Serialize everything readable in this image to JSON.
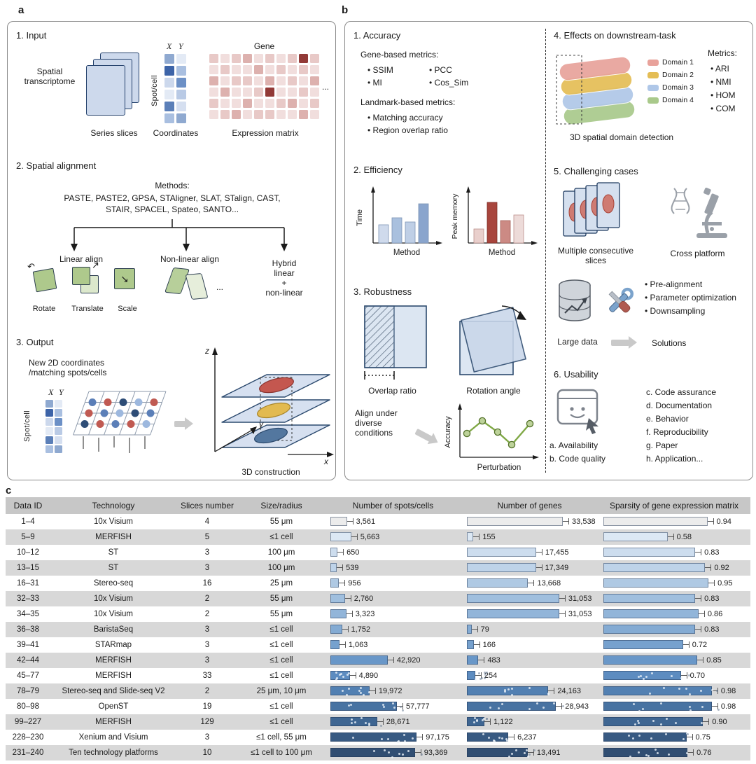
{
  "panel_a": {
    "label": "a",
    "input": {
      "title": "1. Input",
      "spatial_transcriptome": "Spatial transcriptome",
      "series_slices": "Series slices",
      "x": "X",
      "y": "Y",
      "spot_cell": "Spot/cell",
      "coordinates": "Coordinates",
      "gene": "Gene",
      "expression_matrix": "Expression matrix",
      "ellipsis": "..."
    },
    "alignment": {
      "title": "2. Spatial alignment",
      "methods_label": "Methods:",
      "methods_line1": "PASTE, PASTE2, GPSA, STAligner, SLAT, STalign, CAST,",
      "methods_line2": "STAIR, SPACEL, Spateo, SANTO...",
      "linear": "Linear align",
      "rotate": "Rotate",
      "translate": "Translate",
      "scale": "Scale",
      "nonlinear": "Non-linear align",
      "ellipsis": "...",
      "hybrid": "Hybrid\nlinear\n+\nnon-linear",
      "icons": {
        "rotate_arrow": "↶",
        "translate_arrow": "↗",
        "scale_arrow": "↘"
      }
    },
    "output": {
      "title": "3. Output",
      "new_coordinates": "New 2D coordinates\n/matching spots/cells",
      "x": "X",
      "y": "Y",
      "spot_cell": "Spot/cell",
      "axis_x": "x",
      "axis_y": "y",
      "axis_z": "z",
      "construction": "3D construction"
    }
  },
  "panel_b": {
    "label": "b",
    "accuracy": {
      "title": "1. Accuracy",
      "gene_metrics_label": "Gene-based metrics:",
      "gene_metrics": [
        "SSIM",
        "MI",
        "PCC",
        "Cos_Sim"
      ],
      "landmark_metrics_label": "Landmark-based metrics:",
      "landmark_metrics": [
        "Matching accuracy",
        "Region overlap ratio"
      ]
    },
    "efficiency": {
      "title": "2. Efficiency",
      "time_ylabel": "Time",
      "memory_ylabel": "Peak memory",
      "xlabel": "Method"
    },
    "robustness": {
      "title": "3. Robustness",
      "overlap_caption": "Overlap ratio",
      "rotation_caption": "Rotation angle",
      "align_text": "Align under\ndiverse\nconditions",
      "ylabel": "Accuracy",
      "xlabel": "Perturbation"
    },
    "downstream": {
      "title": "4. Effects on downstream-task",
      "metrics_label": "Metrics:",
      "metrics": [
        "ARI",
        "NMI",
        "HOM",
        "COM"
      ],
      "domains": [
        {
          "label": "Domain 1",
          "color": "#e8a29b"
        },
        {
          "label": "Domain 2",
          "color": "#e4bd55"
        },
        {
          "label": "Domain 3",
          "color": "#afc7e8"
        },
        {
          "label": "Domain 4",
          "color": "#a9c98b"
        }
      ],
      "caption": "3D spatial domain detection"
    },
    "challenging": {
      "title": "5. Challenging cases",
      "multiple_slices": "Multiple consecutive slices",
      "cross_platform": "Cross platform",
      "large_data": "Large data",
      "bullets": [
        "Pre-alignment",
        "Parameter optimization",
        "Downsampling"
      ],
      "solutions": "Solutions"
    },
    "usability": {
      "title": "6. Usability",
      "items_left": [
        "a. Availability",
        "b. Code quality"
      ],
      "items_right": [
        "c. Code assurance",
        "d. Documentation",
        "e. Behavior",
        "f. Reproducibility",
        "g. Paper",
        "h. Application..."
      ]
    }
  },
  "panel_c": {
    "label": "c",
    "chart_data": {
      "type": "table",
      "columns": [
        "Data ID",
        "Technology",
        "Slices number",
        "Size/radius",
        "Number of spots/cells",
        "Number of genes",
        "Sparsity of gene expression matrix"
      ],
      "bar_colors": [
        "#ececec",
        "#dce8f4",
        "#cdddee",
        "#bed3e9",
        "#afc9e3",
        "#a0bfde",
        "#92b5d9",
        "#84abd3",
        "#76a1ce",
        "#6997c8",
        "#5d8cc0",
        "#5280b2",
        "#4873a2",
        "#3f6692",
        "#385a82",
        "#314e72"
      ],
      "rows": [
        {
          "data_id": "1–4",
          "technology": "10x Visium",
          "slices": "4",
          "size": "55 μm",
          "spots": 3561,
          "spots_label": "3,561",
          "genes": 33538,
          "genes_label": "33,538",
          "sparsity": 0.94,
          "sparsity_label": "0.94"
        },
        {
          "data_id": "5–9",
          "technology": "MERFISH",
          "slices": "5",
          "size": "≤1 cell",
          "spots": 5663,
          "spots_label": "5,663",
          "genes": 155,
          "genes_label": "155",
          "sparsity": 0.58,
          "sparsity_label": "0.58"
        },
        {
          "data_id": "10–12",
          "technology": "ST",
          "slices": "3",
          "size": "100 μm",
          "spots": 650,
          "spots_label": "650",
          "genes": 17455,
          "genes_label": "17,455",
          "sparsity": 0.83,
          "sparsity_label": "0.83"
        },
        {
          "data_id": "13–15",
          "technology": "ST",
          "slices": "3",
          "size": "100 μm",
          "spots": 539,
          "spots_label": "539",
          "genes": 17349,
          "genes_label": "17,349",
          "sparsity": 0.92,
          "sparsity_label": "0.92"
        },
        {
          "data_id": "16–31",
          "technology": "Stereo-seq",
          "slices": "16",
          "size": "25 μm",
          "spots": 956,
          "spots_label": "956",
          "genes": 13668,
          "genes_label": "13,668",
          "sparsity": 0.95,
          "sparsity_label": "0.95"
        },
        {
          "data_id": "32–33",
          "technology": "10x Visium",
          "slices": "2",
          "size": "55 μm",
          "spots": 2760,
          "spots_label": "2,760",
          "genes": 31053,
          "genes_label": "31,053",
          "sparsity": 0.83,
          "sparsity_label": "0.83"
        },
        {
          "data_id": "34–35",
          "technology": "10x Visium",
          "slices": "2",
          "size": "55 μm",
          "spots": 3323,
          "spots_label": "3,323",
          "genes": 31053,
          "genes_label": "31,053",
          "sparsity": 0.86,
          "sparsity_label": "0.86"
        },
        {
          "data_id": "36–38",
          "technology": "BaristaSeq",
          "slices": "3",
          "size": "≤1 cell",
          "spots": 1752,
          "spots_label": "1,752",
          "genes": 79,
          "genes_label": "79",
          "sparsity": 0.83,
          "sparsity_label": "0.83"
        },
        {
          "data_id": "39–41",
          "technology": "STARmap",
          "slices": "3",
          "size": "≤1 cell",
          "spots": 1063,
          "spots_label": "1,063",
          "genes": 166,
          "genes_label": "166",
          "sparsity": 0.72,
          "sparsity_label": "0.72"
        },
        {
          "data_id": "42–44",
          "technology": "MERFISH",
          "slices": "3",
          "size": "≤1 cell",
          "spots": 42920,
          "spots_label": "42,920",
          "genes": 483,
          "genes_label": "483",
          "sparsity": 0.85,
          "sparsity_label": "0.85"
        },
        {
          "data_id": "45–77",
          "technology": "MERFISH",
          "slices": "33",
          "size": "≤1 cell",
          "spots": 4890,
          "spots_label": "4,890",
          "genes": 254,
          "genes_label": "254",
          "sparsity": 0.7,
          "sparsity_label": "0.70"
        },
        {
          "data_id": "78–79",
          "technology": "Stereo-seq and Slide-seq V2",
          "slices": "2",
          "size": "25 μm, 10 μm",
          "spots": 19972,
          "spots_label": "19,972",
          "genes": 24163,
          "genes_label": "24,163",
          "sparsity": 0.98,
          "sparsity_label": "0.98"
        },
        {
          "data_id": "80–98",
          "technology": "OpenST",
          "slices": "19",
          "size": "≤1 cell",
          "spots": 57777,
          "spots_label": "57,777",
          "genes": 28943,
          "genes_label": "28,943",
          "sparsity": 0.98,
          "sparsity_label": "0.98"
        },
        {
          "data_id": "99–227",
          "technology": "MERFISH",
          "slices": "129",
          "size": "≤1 cell",
          "spots": 28671,
          "spots_label": "28,671",
          "genes": 1122,
          "genes_label": "1,122",
          "sparsity": 0.9,
          "sparsity_label": "0.90"
        },
        {
          "data_id": "228–230",
          "technology": "Xenium and Visium",
          "slices": "3",
          "size": "≤1 cell, 55 μm",
          "spots": 97175,
          "spots_label": "97,175",
          "genes": 6237,
          "genes_label": "6,237",
          "sparsity": 0.75,
          "sparsity_label": "0.75"
        },
        {
          "data_id": "231–240",
          "technology": "Ten technology platforms",
          "slices": "10",
          "size": "≤1 cell to 100 μm",
          "spots": 93369,
          "spots_label": "93,369",
          "genes": 13491,
          "genes_label": "13,491",
          "sparsity": 0.76,
          "sparsity_label": "0.76"
        }
      ]
    }
  }
}
